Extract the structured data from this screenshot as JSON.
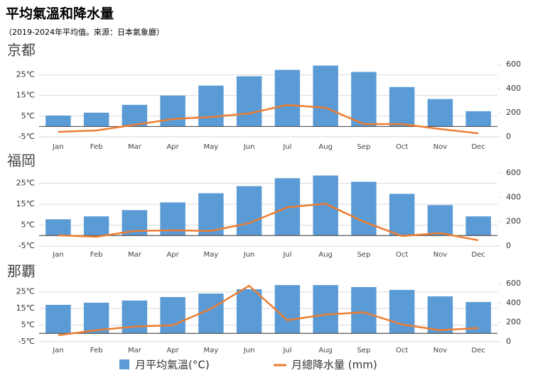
{
  "title": "平均氣溫和降水量",
  "subtitle": "（2019-2024年平均值。來源：日本氣象廳）",
  "chart_data": [
    {
      "type": "bar",
      "title": "京都",
      "categories": [
        "Jan",
        "Feb",
        "Mar",
        "Apr",
        "May",
        "Jun",
        "Jul",
        "Aug",
        "Sep",
        "Oct",
        "Nov",
        "Dec"
      ],
      "series": [
        {
          "name": "月平均氣溫(°C)",
          "type": "bar",
          "color": "#5b9bd5",
          "values": [
            5.3,
            6.7,
            10.5,
            15,
            19.8,
            24.3,
            27.4,
            29.5,
            26.4,
            19.1,
            13.3,
            7.4
          ]
        },
        {
          "name": "月總降水量 (mm)",
          "type": "line",
          "axis": "y2",
          "color": "#ed7d31",
          "values": [
            41,
            53,
            100,
            147,
            165,
            194,
            265,
            241,
            106,
            106,
            65,
            29
          ]
        }
      ],
      "ylim": [
        -5,
        30
      ],
      "yticks": [
        {
          "value": -5,
          "label": "-5℃"
        },
        {
          "value": 5,
          "label": "5℃"
        },
        {
          "value": 15,
          "label": "15℃"
        },
        {
          "value": 25,
          "label": "25℃"
        }
      ],
      "y2lim": [
        0,
        600
      ],
      "y2ticks": [
        0,
        200,
        400,
        600
      ],
      "grid": true
    },
    {
      "type": "bar",
      "title": "福岡",
      "categories": [
        "Jan",
        "Feb",
        "Mar",
        "Apr",
        "May",
        "Jun",
        "Jul",
        "Aug",
        "Sep",
        "Oct",
        "Nov",
        "Dec"
      ],
      "series": [
        {
          "type": "bar",
          "color": "#5b9bd5",
          "values": [
            7.8,
            9.2,
            12.2,
            15.9,
            20.3,
            23.7,
            27.5,
            28.8,
            25.8,
            20,
            14.6,
            9.2
          ]
        },
        {
          "type": "line",
          "axis": "y2",
          "color": "#ed7d31",
          "values": [
            88,
            76,
            124,
            129,
            124,
            188,
            318,
            347,
            200,
            82,
            106,
            47
          ]
        }
      ],
      "ylim": [
        -5,
        30
      ],
      "yticks": [
        {
          "value": -5,
          "label": "-5℃"
        },
        {
          "value": 5,
          "label": "5℃"
        },
        {
          "value": 15,
          "label": "15℃"
        },
        {
          "value": 25,
          "label": "25℃"
        }
      ],
      "y2lim": [
        0,
        600
      ],
      "y2ticks": [
        0,
        200,
        400,
        600
      ],
      "grid": true
    },
    {
      "type": "bar",
      "title": "那覇",
      "categories": [
        "Jan",
        "Feb",
        "Mar",
        "Apr",
        "May",
        "Jun",
        "Jul",
        "Aug",
        "Sep",
        "Oct",
        "Nov",
        "Dec"
      ],
      "series": [
        {
          "type": "bar",
          "color": "#5b9bd5",
          "values": [
            17.2,
            18.5,
            19.8,
            21.9,
            24,
            26.6,
            29.1,
            29.1,
            27.9,
            26.2,
            22.3,
            18.9
          ]
        },
        {
          "type": "line",
          "axis": "y2",
          "color": "#ed7d31",
          "values": [
            67,
            119,
            156,
            170,
            341,
            578,
            222,
            281,
            304,
            178,
            119,
            141
          ]
        }
      ],
      "ylim": [
        -5,
        30
      ],
      "yticks": [
        {
          "value": -5,
          "label": "-5℃"
        },
        {
          "value": 5,
          "label": "5℃"
        },
        {
          "value": 15,
          "label": "15℃"
        },
        {
          "value": 25,
          "label": "25℃"
        }
      ],
      "y2lim": [
        0,
        600
      ],
      "y2ticks": [
        0,
        200,
        400,
        600
      ],
      "grid": true
    }
  ]
}
